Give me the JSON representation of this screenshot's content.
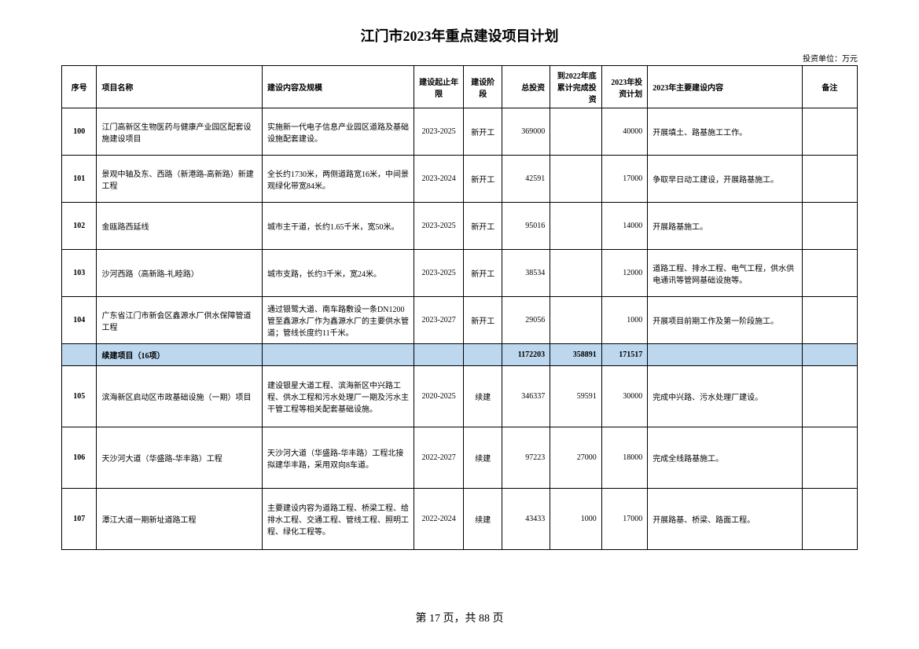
{
  "title": "江门市2023年重点建设项目计划",
  "unit_label": "投资单位：万元",
  "columns": {
    "seq": "序号",
    "name": "项目名称",
    "content": "建设内容及规模",
    "period": "建设起止年限",
    "stage": "建设阶段",
    "total": "总投资",
    "cumul": "到2022年底累计完成投资",
    "plan": "2023年投资计划",
    "main": "2023年主要建设内容",
    "remark": "备注"
  },
  "rows": [
    {
      "seq": "100",
      "name": "江门高新区生物医药与健康产业园区配套设施建设项目",
      "content": "实施新一代电子信息产业园区道路及基础设施配套建设。",
      "period": "2023-2025",
      "stage": "新开工",
      "total": "369000",
      "cumul": "",
      "plan": "40000",
      "main": "开展填土、路基施工工作。",
      "remark": ""
    },
    {
      "seq": "101",
      "name": "景观中轴及东、西路（新港路-高新路）新建工程",
      "content": "全长约1730米，两侧道路宽16米，中间景观绿化带宽84米。",
      "period": "2023-2024",
      "stage": "新开工",
      "total": "42591",
      "cumul": "",
      "plan": "17000",
      "main": "争取早日动工建设，开展路基施工。",
      "remark": ""
    },
    {
      "seq": "102",
      "name": "金瓯路西延线",
      "content": "城市主干道，长约1.65千米，宽50米。",
      "period": "2023-2025",
      "stage": "新开工",
      "total": "95016",
      "cumul": "",
      "plan": "14000",
      "main": "开展路基施工。",
      "remark": ""
    },
    {
      "seq": "103",
      "name": "沙河西路（高新路-礼睦路）",
      "content": "城市支路，长约3千米，宽24米。",
      "period": "2023-2025",
      "stage": "新开工",
      "total": "38534",
      "cumul": "",
      "plan": "12000",
      "main": "道路工程、排水工程、电气工程，供水供电通讯等管网基础设施等。",
      "remark": ""
    },
    {
      "seq": "104",
      "name": "广东省江门市新会区鑫源水厂供水保障管道工程",
      "content": "通过银鹭大道、南车路敷设一条DN1200管至鑫源水厂作为鑫源水厂的主要供水管道；管线长度约11千米。",
      "period": "2023-2027",
      "stage": "新开工",
      "total": "29056",
      "cumul": "",
      "plan": "1000",
      "main": "开展项目前期工作及第一阶段施工。",
      "remark": ""
    }
  ],
  "summary": {
    "name": "续建项目（16项）",
    "total": "1172203",
    "cumul": "358891",
    "plan": "171517"
  },
  "rows2": [
    {
      "seq": "105",
      "name": "滨海新区启动区市政基础设施（一期）项目",
      "content": "建设银星大道工程、滨海新区中兴路工程、供水工程和污水处理厂一期及污水主干管工程等相关配套基础设施。",
      "period": "2020-2025",
      "stage": "续建",
      "total": "346337",
      "cumul": "59591",
      "plan": "30000",
      "main": "完成中兴路、污水处理厂建设。",
      "remark": ""
    },
    {
      "seq": "106",
      "name": "天沙河大道（华盛路-华丰路）工程",
      "content": "天沙河大道（华盛路-华丰路）工程北接拟建华丰路，采用双向8车道。",
      "period": "2022-2027",
      "stage": "续建",
      "total": "97223",
      "cumul": "27000",
      "plan": "18000",
      "main": "完成全线路基施工。",
      "remark": ""
    },
    {
      "seq": "107",
      "name": "潭江大道一期新址道路工程",
      "content": "主要建设内容为道路工程、桥梁工程、给排水工程、交通工程、管线工程、照明工程、绿化工程等。",
      "period": "2022-2024",
      "stage": "续建",
      "total": "43433",
      "cumul": "1000",
      "plan": "17000",
      "main": "开展路基、桥梁、路面工程。",
      "remark": ""
    }
  ],
  "footer": "第 17 页，共 88 页"
}
